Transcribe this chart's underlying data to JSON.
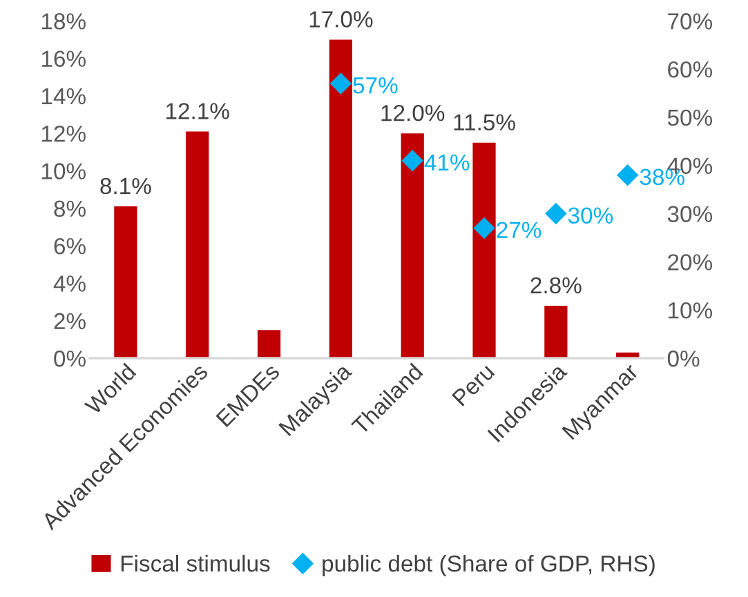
{
  "chart_data": {
    "type": "bar",
    "categories": [
      "World",
      "Advanced Economies",
      "EMDEs",
      "Malaysia",
      "Thailand",
      "Peru",
      "Indonesia",
      "Myanmar"
    ],
    "series": [
      {
        "name": "Fiscal stimulus",
        "color": "#c00000",
        "values": [
          8.1,
          12.1,
          1.5,
          17.0,
          12.0,
          11.5,
          2.8,
          0.3
        ],
        "value_labels": [
          "8.1%",
          "12.1%",
          null,
          "17.0%",
          "12.0%",
          "11.5%",
          "2.8%",
          null
        ]
      },
      {
        "name": "public debt (Share of GDP, RHS)",
        "type": "scatter",
        "axis": "y2",
        "color": "#00b0f0",
        "values": [
          null,
          null,
          null,
          57,
          41,
          27,
          30,
          38
        ],
        "value_labels": [
          null,
          null,
          null,
          "57%",
          "41%",
          "27%",
          "30%",
          "38%"
        ]
      }
    ],
    "ylim": [
      0,
      18
    ],
    "yticks": [
      {
        "value": 0,
        "label": "0%"
      },
      {
        "value": 2,
        "label": "2%"
      },
      {
        "value": 4,
        "label": "4%"
      },
      {
        "value": 6,
        "label": "6%"
      },
      {
        "value": 8,
        "label": "8%"
      },
      {
        "value": 10,
        "label": "10%"
      },
      {
        "value": 12,
        "label": "12%"
      },
      {
        "value": 14,
        "label": "14%"
      },
      {
        "value": 16,
        "label": "16%"
      },
      {
        "value": 18,
        "label": "18%"
      }
    ],
    "y2lim": [
      0,
      70
    ],
    "y2ticks": [
      {
        "value": 0,
        "label": "0%"
      },
      {
        "value": 10,
        "label": "10%"
      },
      {
        "value": 20,
        "label": "20%"
      },
      {
        "value": 30,
        "label": "30%"
      },
      {
        "value": 40,
        "label": "40%"
      },
      {
        "value": 50,
        "label": "50%"
      },
      {
        "value": 60,
        "label": "60%"
      },
      {
        "value": 70,
        "label": "70%"
      }
    ],
    "marker": "diamond",
    "legend": "bottom",
    "grid": false
  }
}
